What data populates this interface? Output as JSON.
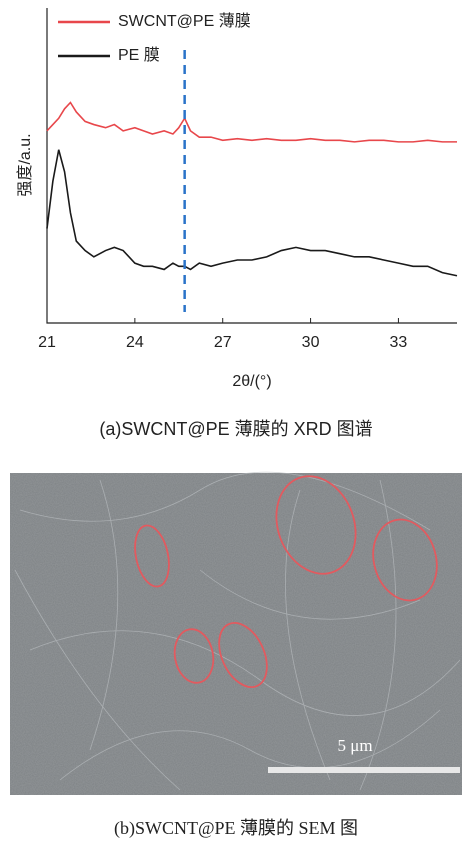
{
  "chart_data": {
    "type": "line",
    "x_label": "2θ/(°)",
    "y_label": "强度/a.u.",
    "x": [
      21,
      21.2,
      21.4,
      21.6,
      21.8,
      22,
      22.3,
      22.6,
      23,
      23.3,
      23.6,
      24,
      24.3,
      24.6,
      25,
      25.3,
      25.5,
      25.7,
      25.9,
      26.2,
      26.6,
      27,
      27.5,
      28,
      28.5,
      29,
      29.5,
      30,
      30.5,
      31,
      31.5,
      32,
      32.5,
      33,
      33.5,
      34,
      34.5,
      35
    ],
    "series": [
      {
        "name": "SWCNT@PE 薄膜",
        "color": "#e8474b",
        "values": [
          61,
          63,
          65,
          68,
          70,
          67,
          64,
          63,
          62,
          63,
          61,
          62,
          61,
          60,
          61,
          60,
          62,
          65,
          61,
          59,
          59,
          58,
          58.5,
          58,
          58.5,
          58,
          58,
          58.5,
          58,
          58,
          57.5,
          58,
          58,
          57.5,
          57.5,
          58,
          57.5,
          57.5
        ]
      },
      {
        "name": "PE 膜",
        "color": "#1a1a1a",
        "values": [
          30,
          45,
          55,
          48,
          35,
          26,
          23,
          21,
          23,
          24,
          23,
          19,
          18,
          18,
          17,
          19,
          18,
          18,
          17,
          19,
          18,
          19,
          20,
          20,
          21,
          23,
          24,
          23,
          23,
          22,
          21,
          21,
          20,
          19,
          18,
          18,
          16,
          15
        ]
      }
    ],
    "xlim": [
      21,
      35
    ],
    "xticks": [
      21,
      24,
      27,
      30,
      33
    ],
    "ylim": [
      0,
      100
    ],
    "vline": {
      "x": 25.7,
      "color": "#2a73c9"
    },
    "legend": "upper left"
  },
  "captions": [
    "(a)SWCNT@PE 薄膜的 XRD 图谱",
    "(b)SWCNT@PE 薄膜的 SEM 图"
  ],
  "sem_image": {
    "scale_bar": "5 μm"
  }
}
